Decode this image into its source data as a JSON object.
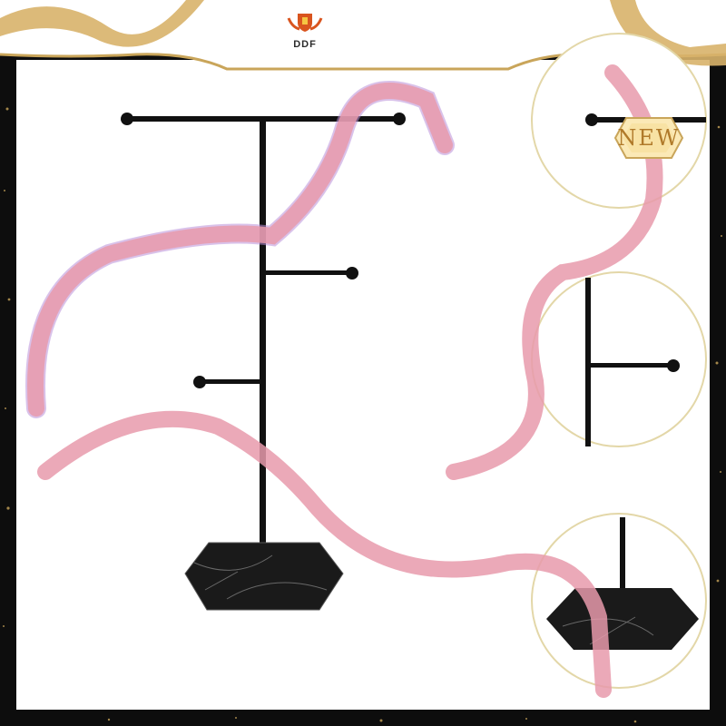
{
  "brand": {
    "logo_text": "DDF",
    "accent": "#c9a55a",
    "crest": "shield-crest-icon"
  },
  "badge": {
    "label": "NEW",
    "color": "#b07a2a"
  },
  "product": {
    "base_color": "#1a1a1a",
    "ribbon_color": "#e79aab"
  },
  "detail_views": [
    "top-bar-detail",
    "middle-arm-detail",
    "base-detail"
  ]
}
